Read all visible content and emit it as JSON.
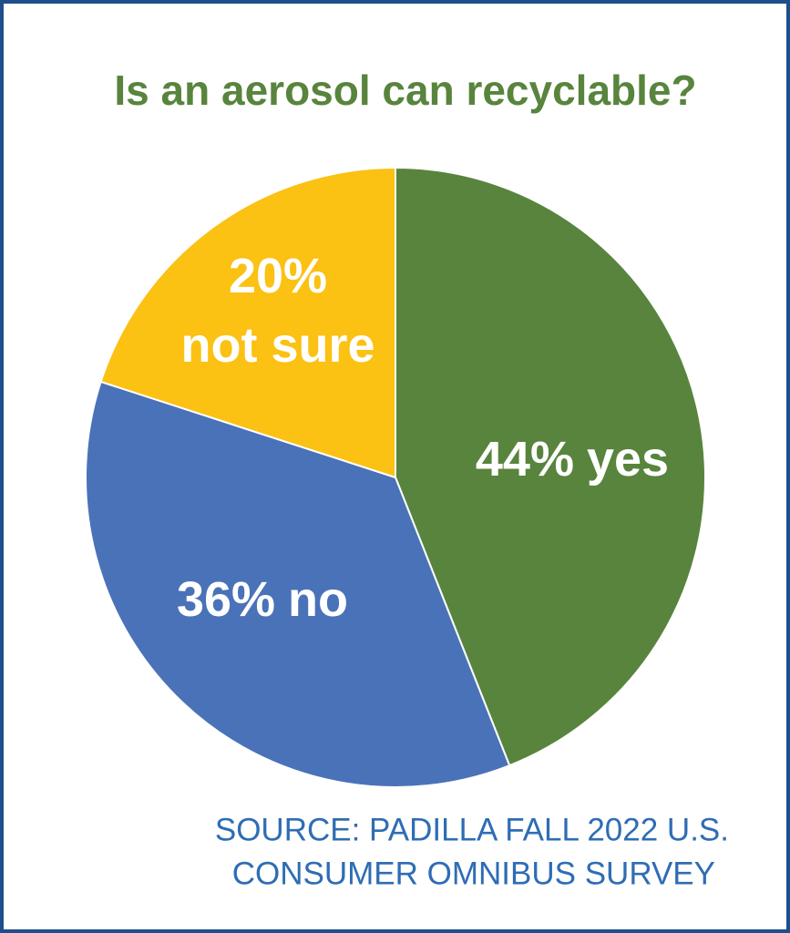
{
  "chart_data": {
    "type": "pie",
    "title": "Is an aerosol can recyclable?",
    "categories": [
      "yes",
      "no",
      "not sure"
    ],
    "values": [
      44,
      36,
      20
    ],
    "value_labels": [
      "44%",
      "36%",
      "20%"
    ],
    "colors": [
      "#58843d",
      "#4a72b8",
      "#fbc113"
    ],
    "source": [
      "SOURCE: PADILLA FALL 2022 U.S.",
      "CONSUMER OMNIBUS SURVEY"
    ]
  }
}
